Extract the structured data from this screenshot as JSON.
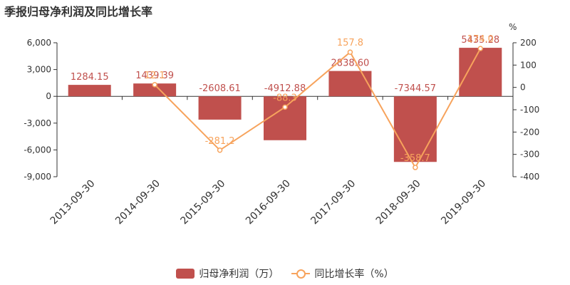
{
  "title": "季报归母净利润及同比增长率",
  "colors": {
    "bar": "#c0504d",
    "line": "#f7a35c",
    "axis": "#333333",
    "grid": "#e6e6e6"
  },
  "legend": {
    "bar_label": "归母净利润（万）",
    "line_label": "同比增长率（%）"
  },
  "chart_data": {
    "type": "bar",
    "categories": [
      "2013-09-30",
      "2014-09-30",
      "2015-09-30",
      "2016-09-30",
      "2017-09-30",
      "2018-09-30",
      "2019-09-30"
    ],
    "series": [
      {
        "name": "归母净利润（万）",
        "type": "bar",
        "axis": "left",
        "values": [
          1284.15,
          1439.39,
          -2608.61,
          -4912.88,
          2838.6,
          -7344.57,
          5435.28
        ],
        "labels": [
          "1284.15",
          "1439.39",
          "-2608.61",
          "-4912.88",
          "2838.60",
          "-7344.57",
          "5435.28"
        ]
      },
      {
        "name": "同比增长率（%）",
        "type": "line",
        "axis": "right",
        "values": [
          null,
          12.1,
          -281.2,
          -88.3,
          157.8,
          -358.7,
          174.0
        ],
        "labels": [
          "",
          "12.1",
          "-281.2",
          "-88.3",
          "157.8",
          "-358.7",
          "174.0"
        ]
      }
    ],
    "left_axis": {
      "min": -9000,
      "max": 6000,
      "ticks": [
        "6,000",
        "3,000",
        "0",
        "-3,000",
        "-6,000",
        "-9,000"
      ],
      "tick_values": [
        6000,
        3000,
        0,
        -3000,
        -6000,
        -9000
      ]
    },
    "right_axis": {
      "min": -400,
      "max": 200,
      "unit": "%",
      "ticks": [
        "200",
        "100",
        "0",
        "-100",
        "-200",
        "-300",
        "-400"
      ],
      "tick_values": [
        200,
        100,
        0,
        -100,
        -200,
        -300,
        -400
      ]
    },
    "legend_position": "bottom",
    "grid": false
  }
}
